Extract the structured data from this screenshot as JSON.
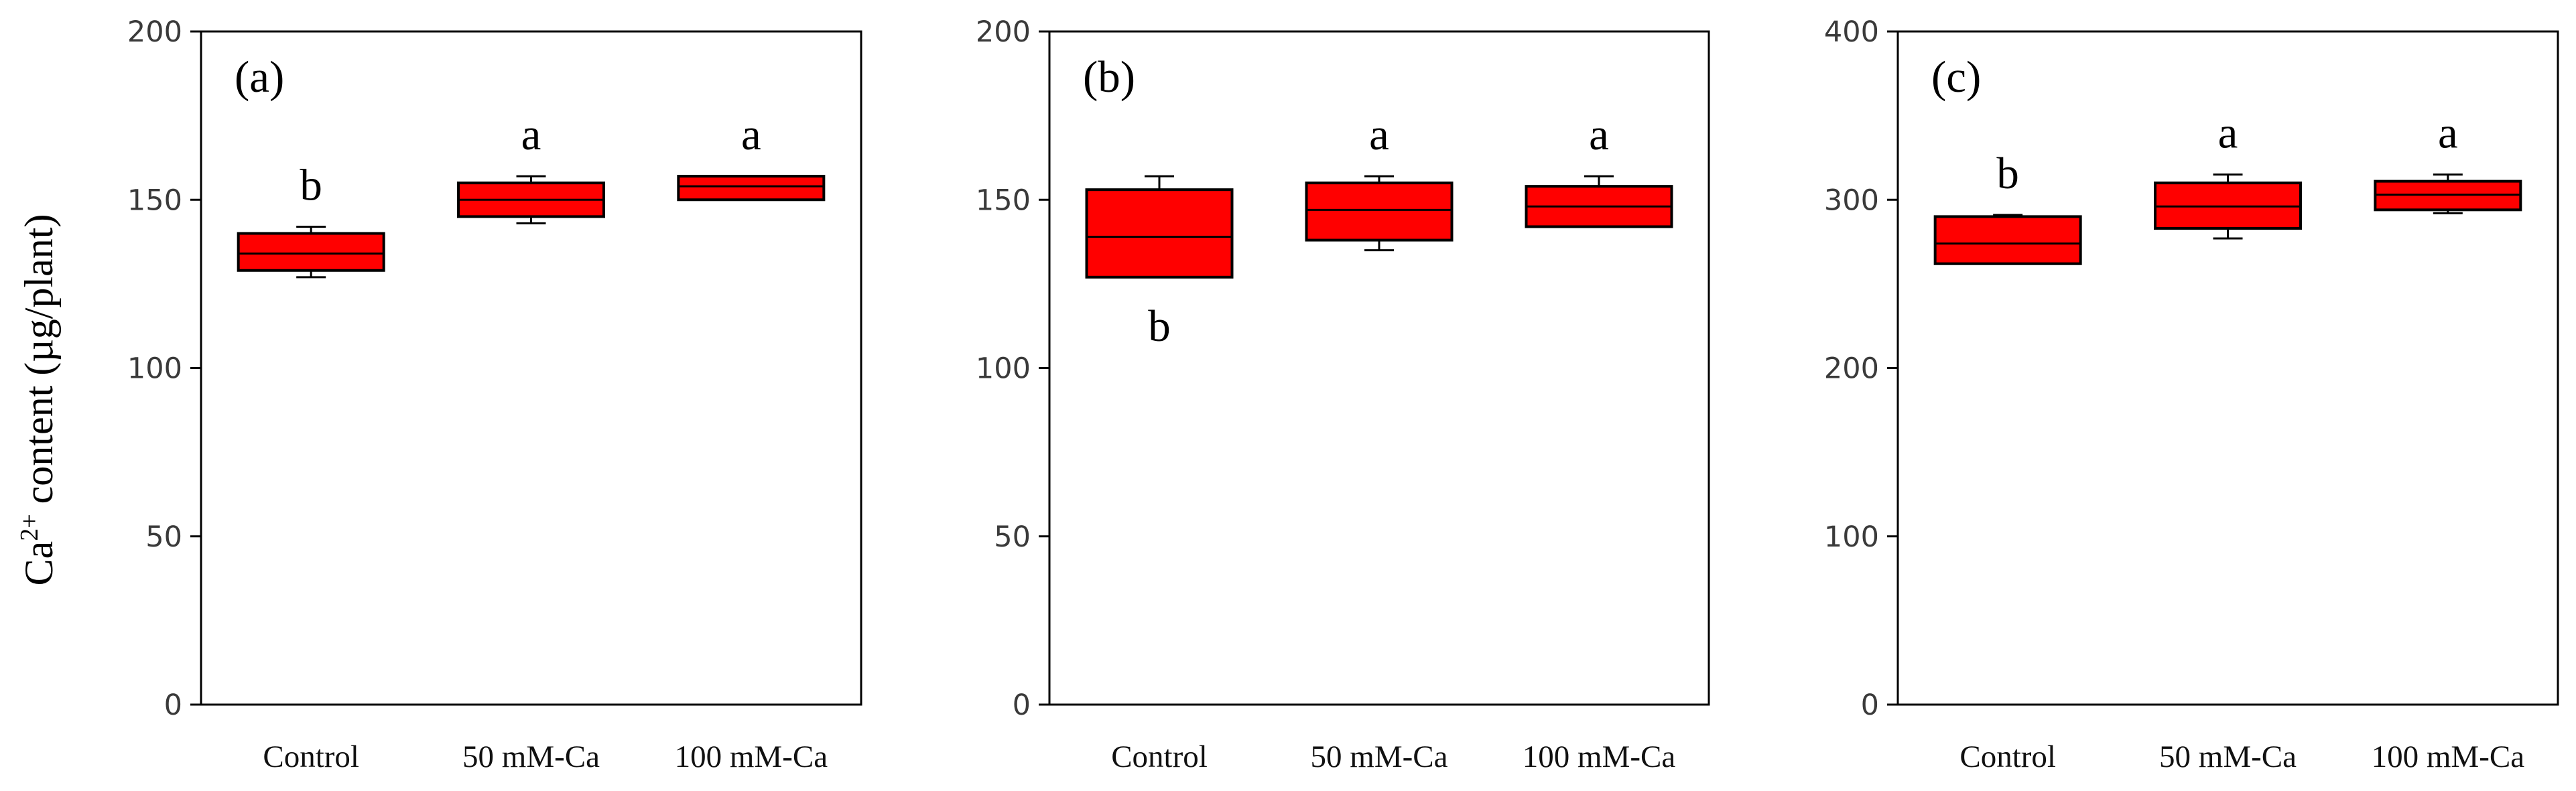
{
  "y_label": {
    "prefix": "Ca",
    "superscript": "2+",
    "suffix": " content (µg/plant)"
  },
  "chart_data": [
    {
      "type": "box",
      "panel_label": "(a)",
      "categories": [
        "Control",
        "50 mM-Ca",
        "100 mM-Ca"
      ],
      "ylim": [
        0,
        200
      ],
      "yticks": [
        0,
        50,
        100,
        150,
        200
      ],
      "ylabel": "Ca2+ content (µg/plant)",
      "boxes": [
        {
          "category": "Control",
          "min": 127,
          "q1": 129,
          "median": 134,
          "q3": 140,
          "max": 142,
          "letter": "b"
        },
        {
          "category": "50 mM-Ca",
          "min": 143,
          "q1": 145,
          "median": 150,
          "q3": 155,
          "max": 157,
          "letter": "a"
        },
        {
          "category": "100 mM-Ca",
          "min": 150,
          "q1": 150,
          "median": 154,
          "q3": 157,
          "max": 157,
          "letter": "a"
        }
      ]
    },
    {
      "type": "box",
      "panel_label": "(b)",
      "categories": [
        "Control",
        "50 mM-Ca",
        "100 mM-Ca"
      ],
      "ylim": [
        0,
        200
      ],
      "yticks": [
        0,
        50,
        100,
        150,
        200
      ],
      "boxes": [
        {
          "category": "Control",
          "min": 127,
          "q1": 127,
          "median": 139,
          "q3": 153,
          "max": 157,
          "letter": "b",
          "letter_position": "below"
        },
        {
          "category": "50 mM-Ca",
          "min": 135,
          "q1": 138,
          "median": 147,
          "q3": 155,
          "max": 157,
          "letter": "a"
        },
        {
          "category": "100 mM-Ca",
          "min": 142,
          "q1": 142,
          "median": 148,
          "q3": 154,
          "max": 157,
          "letter": "a"
        }
      ]
    },
    {
      "type": "box",
      "panel_label": "(c)",
      "categories": [
        "Control",
        "50 mM-Ca",
        "100 mM-Ca"
      ],
      "ylim": [
        0,
        400
      ],
      "yticks": [
        0,
        100,
        200,
        300,
        400
      ],
      "boxes": [
        {
          "category": "Control",
          "min": 262,
          "q1": 262,
          "median": 274,
          "q3": 290,
          "max": 291,
          "letter": "b"
        },
        {
          "category": "50 mM-Ca",
          "min": 277,
          "q1": 283,
          "median": 296,
          "q3": 310,
          "max": 315,
          "letter": "a"
        },
        {
          "category": "100 mM-Ca",
          "min": 292,
          "q1": 294,
          "median": 303,
          "q3": 311,
          "max": 315,
          "letter": "a"
        }
      ]
    }
  ],
  "colors": {
    "box_fill": "#ff0000",
    "stroke": "#000000",
    "axis": "#000000",
    "frame": "#000000"
  }
}
